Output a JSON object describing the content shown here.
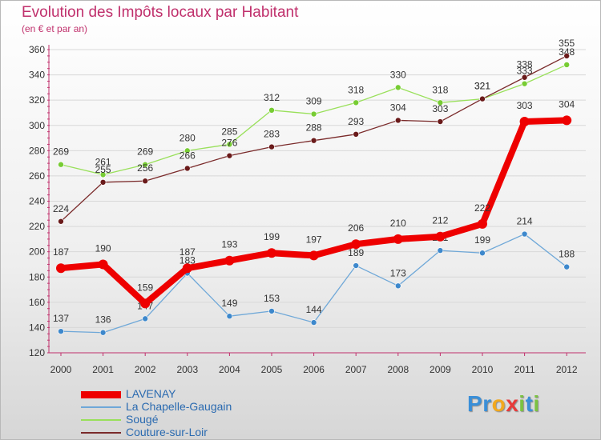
{
  "header": {
    "title": "Evolution des Impôts locaux par Habitant",
    "subtitle": "(en € et par an)"
  },
  "colors": {
    "title": "#c0306c",
    "axis": "#c0306c",
    "grid": "#d8d8d8"
  },
  "logo": {
    "letters": [
      {
        "ch": "P",
        "color": "#3a8fd8"
      },
      {
        "ch": "r",
        "color": "#3a8fd8"
      },
      {
        "ch": "o",
        "color": "#f2a81e"
      },
      {
        "ch": "x",
        "color": "#e83a3a"
      },
      {
        "ch": "i",
        "color": "#7cc242"
      },
      {
        "ch": "t",
        "color": "#3a8fd8"
      },
      {
        "ch": "i",
        "color": "#7cc242"
      }
    ]
  },
  "chart_data": {
    "type": "line",
    "title": "Evolution des Impôts locaux par Habitant",
    "subtitle": "(en € et par an)",
    "xlabel": "",
    "ylabel": "",
    "ylim": [
      120,
      360
    ],
    "yticks": [
      120,
      140,
      160,
      180,
      200,
      220,
      240,
      260,
      280,
      300,
      320,
      340,
      360
    ],
    "x": [
      "2000",
      "2001",
      "2002",
      "2003",
      "2004",
      "2005",
      "2006",
      "2007",
      "2008",
      "2009",
      "2010",
      "2011",
      "2012"
    ],
    "grid": "horizontal",
    "legend_position": "bottom-left",
    "series": [
      {
        "name": "Sougé",
        "color": "#99e05a",
        "dot": "#77cc33",
        "values": [
          269,
          261,
          269,
          280,
          285,
          312,
          309,
          318,
          330,
          318,
          321,
          333,
          348
        ],
        "style": "thin"
      },
      {
        "name": "Couture-sur-Loir",
        "color": "#7a2a2a",
        "dot": "#6a1a1a",
        "values": [
          224,
          255,
          256,
          266,
          276,
          283,
          288,
          293,
          304,
          303,
          321,
          338,
          355
        ],
        "style": "thin"
      },
      {
        "name": "La Chapelle-Gaugain",
        "color": "#6fa8d8",
        "dot": "#3d88cc",
        "values": [
          137,
          136,
          147,
          183,
          149,
          153,
          144,
          189,
          173,
          201,
          199,
          214,
          188
        ],
        "style": "thin"
      },
      {
        "name": "LAVENAY",
        "color": "#ee0000",
        "dot": "#ee0000",
        "values": [
          187,
          190,
          159,
          187,
          193,
          199,
          197,
          206,
          210,
          212,
          222,
          303,
          304
        ],
        "style": "thick"
      }
    ],
    "legend_order": [
      "LAVENAY",
      "La Chapelle-Gaugain",
      "Sougé",
      "Couture-sur-Loir"
    ]
  }
}
